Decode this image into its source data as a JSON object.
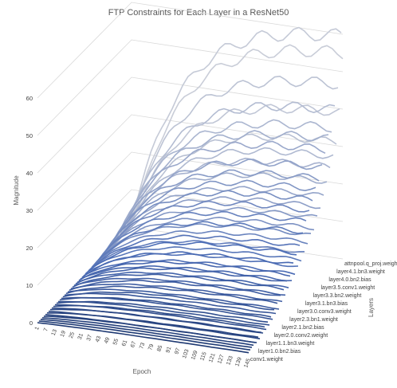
{
  "chart_data": {
    "type": "line",
    "title": "FTP Constraints for Each Layer in a ResNet50",
    "zlabel": "Magnitude",
    "xlabel": "Epoch",
    "ylabel": "Layers",
    "zlim": [
      0,
      60
    ],
    "z_ticks": [
      "0",
      "10",
      "20",
      "30",
      "40",
      "50",
      "60"
    ],
    "epoch_ticks": [
      "1",
      "7",
      "13",
      "19",
      "25",
      "31",
      "37",
      "43",
      "49",
      "55",
      "61",
      "67",
      "73",
      "79",
      "85",
      "91",
      "97",
      "103",
      "109",
      "115",
      "121",
      "127",
      "133",
      "139",
      "145"
    ],
    "layer_ticks": [
      "conv1.weight",
      "layer1.0.bn2.bias",
      "layer1.1.bn3.weight",
      "layer2.0.conv2.weight",
      "layer2.1.bn2.bias",
      "layer2.3.bn1.weight",
      "layer3.0.conv3.weight",
      "layer3.1.bn3.bias",
      "layer3.3.bn2.weight",
      "layer3.5.conv1.weight",
      "layer4.0.bn2.bias",
      "layer4.1.bn3.weight",
      "attnpool.q_proj.weight"
    ],
    "grid": true,
    "legend": "none",
    "colors": {
      "front": "#1f3a73",
      "back": "#c9cdd8",
      "mid": "#4a6bb5",
      "grid": "#d9d9d9",
      "text": "#404040"
    },
    "series_count": 60,
    "series_final_values": [
      0.5,
      0.8,
      1,
      1.2,
      1.5,
      1,
      2,
      1.2,
      2.5,
      1.8,
      3,
      2,
      3.5,
      2.2,
      4,
      3,
      5,
      3.5,
      6,
      4,
      7,
      5,
      8,
      6,
      9,
      7,
      10,
      8,
      12,
      9,
      14,
      10,
      15,
      11,
      18,
      12,
      20,
      14,
      22,
      15,
      24,
      16,
      26,
      18,
      28,
      20,
      30,
      22,
      34,
      25,
      36,
      28,
      38,
      30,
      42,
      33,
      48,
      40,
      60,
      55
    ]
  }
}
